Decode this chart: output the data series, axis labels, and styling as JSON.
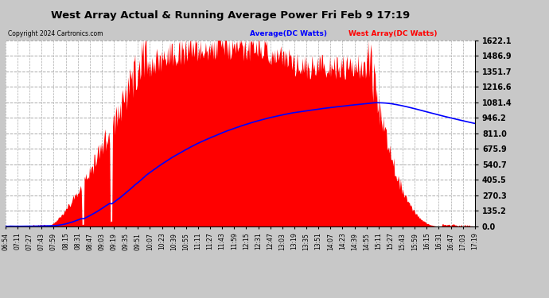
{
  "title": "West Array Actual & Running Average Power Fri Feb 9 17:19",
  "copyright": "Copyright 2024 Cartronics.com",
  "legend_avg": "Average(DC Watts)",
  "legend_west": "West Array(DC Watts)",
  "yticks": [
    0.0,
    135.2,
    270.3,
    405.5,
    540.7,
    675.9,
    811.0,
    946.2,
    1081.4,
    1216.6,
    1351.7,
    1486.9,
    1622.1
  ],
  "ymax": 1622.1,
  "background_color": "#c8c8c8",
  "plot_bg_color": "#ffffff",
  "grid_color": "#aaaaaa",
  "bar_color": "#ff0000",
  "avg_line_color": "#0000ff",
  "title_color": "#000000",
  "copyright_color": "#000000",
  "legend_avg_color": "#0000ff",
  "legend_west_color": "#ff0000",
  "xtick_labels": [
    "06:54",
    "07:11",
    "07:27",
    "07:43",
    "07:59",
    "08:15",
    "08:31",
    "08:47",
    "09:03",
    "09:19",
    "09:35",
    "09:51",
    "10:07",
    "10:23",
    "10:39",
    "10:55",
    "11:11",
    "11:27",
    "11:43",
    "11:59",
    "12:15",
    "12:31",
    "12:47",
    "13:03",
    "13:19",
    "13:35",
    "13:51",
    "14:07",
    "14:23",
    "14:39",
    "14:55",
    "15:11",
    "15:27",
    "15:43",
    "15:59",
    "16:15",
    "16:31",
    "16:47",
    "17:03",
    "17:19"
  ],
  "num_points": 632
}
